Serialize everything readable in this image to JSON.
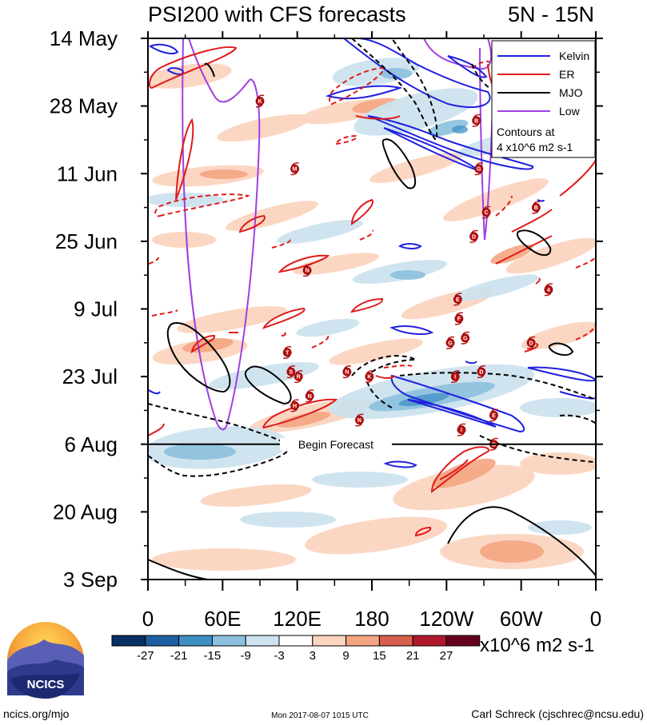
{
  "chart_data": {
    "type": "heatmap",
    "title": "PSI200 with CFS forecasts",
    "subtitle": "5N - 15N",
    "x_ticks": [
      "0",
      "60E",
      "120E",
      "180",
      "120W",
      "60W",
      "0"
    ],
    "x_tick_lon": [
      0,
      60,
      120,
      180,
      240,
      300,
      360
    ],
    "xlim": [
      0,
      360
    ],
    "y_ticks": [
      "14 May",
      "28 May",
      "11 Jun",
      "25 Jun",
      "9 Jul",
      "23 Jul",
      "6 Aug",
      "20 Aug",
      "3 Sep"
    ],
    "y_tick_day": [
      0,
      14,
      28,
      42,
      56,
      70,
      84,
      98,
      112
    ],
    "ylim": [
      0,
      112
    ],
    "forecast_start_day": 84,
    "forecast_label": "Begin Forecast",
    "legend": {
      "placement": "top-right",
      "entries": [
        {
          "label": "Kelvin",
          "color": "#1f1fe0"
        },
        {
          "label": "ER",
          "color": "#e01a1a"
        },
        {
          "label": "MJO",
          "color": "#000000"
        },
        {
          "label": "Low",
          "color": "#a040e0"
        }
      ],
      "note_line1": "Contours at",
      "note_line2": "4 x10^6 m2 s-1"
    },
    "colorbar": {
      "labels": [
        "-27",
        "-21",
        "-15",
        "-9",
        "-3",
        "3",
        "9",
        "15",
        "21",
        "27"
      ],
      "colors": [
        "#053061",
        "#1d5fa0",
        "#3f8fc5",
        "#8cc0de",
        "#cde3ef",
        "#ffffff",
        "#fbd5c0",
        "#f4a582",
        "#d6604d",
        "#b2182b",
        "#67001f"
      ],
      "units": "x10^6 m2 s-1"
    },
    "storms": [
      {
        "letter": "K",
        "lon": 90,
        "day": 13
      },
      {
        "letter": "M",
        "lon": 118,
        "day": 27
      },
      {
        "letter": "N",
        "lon": 128,
        "day": 48
      },
      {
        "letter": "T",
        "lon": 112,
        "day": 65
      },
      {
        "letter": "S",
        "lon": 115,
        "day": 69
      },
      {
        "letter": "R",
        "lon": 121,
        "day": 70
      },
      {
        "letter": "H",
        "lon": 118,
        "day": 76
      },
      {
        "letter": "N",
        "lon": 130,
        "day": 74
      },
      {
        "letter": "N",
        "lon": 160,
        "day": 69
      },
      {
        "letter": "K",
        "lon": 178,
        "day": 70
      },
      {
        "letter": "N",
        "lon": 170,
        "day": 79
      },
      {
        "letter": "B",
        "lon": 264,
        "day": 17
      },
      {
        "letter": "G",
        "lon": 266,
        "day": 27
      },
      {
        "letter": "C",
        "lon": 272,
        "day": 36
      },
      {
        "letter": "D",
        "lon": 262,
        "day": 41
      },
      {
        "letter": "B",
        "lon": 312,
        "day": 35
      },
      {
        "letter": "4",
        "lon": 322,
        "day": 52
      },
      {
        "letter": "E",
        "lon": 249,
        "day": 54
      },
      {
        "letter": "F",
        "lon": 250,
        "day": 58
      },
      {
        "letter": "G",
        "lon": 243,
        "day": 63
      },
      {
        "letter": "G",
        "lon": 255,
        "day": 62
      },
      {
        "letter": "D",
        "lon": 308,
        "day": 63
      },
      {
        "letter": "I",
        "lon": 247,
        "day": 70
      },
      {
        "letter": "D",
        "lon": 268,
        "day": 69
      },
      {
        "letter": "E",
        "lon": 278,
        "day": 78
      },
      {
        "letter": "I",
        "lon": 252,
        "day": 81
      },
      {
        "letter": "G",
        "lon": 278,
        "day": 84
      }
    ]
  },
  "footer": {
    "logo_text": "NCICS",
    "left": "ncics.org/mjo",
    "center": "Mon 2017-08-07 1015 UTC",
    "right": "Carl Schreck (cjschrec@ncsu.edu)"
  }
}
